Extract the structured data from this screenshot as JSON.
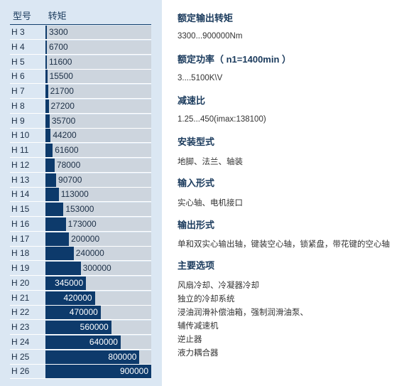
{
  "chart_data": {
    "type": "bar",
    "orientation": "horizontal",
    "header": {
      "model": "型号",
      "torque": "转矩"
    },
    "categories": [
      "H 3",
      "H 4",
      "H 5",
      "H 6",
      "H 7",
      "H 8",
      "H 9",
      "H 10",
      "H 11",
      "H 12",
      "H 13",
      "H 14",
      "H 15",
      "H 16",
      "H 17",
      "H 18",
      "H 19",
      "H 20",
      "H 21",
      "H 22",
      "H 23",
      "H 24",
      "H 25",
      "H 26"
    ],
    "values": [
      3300,
      6700,
      11600,
      15500,
      21700,
      27200,
      35700,
      44200,
      61600,
      78000,
      90700,
      113000,
      153000,
      173000,
      200000,
      240000,
      300000,
      345000,
      420000,
      470000,
      560000,
      640000,
      800000,
      900000
    ],
    "labels": [
      "3300",
      "6700",
      "11600",
      "15500",
      "21700",
      "27200",
      "35700",
      "44200",
      "61600",
      "78000",
      "90700",
      "113000",
      "153000",
      "173000",
      "200000",
      "240000",
      "300000",
      "345000",
      "420000",
      "470000",
      "560000",
      "640000",
      "800000",
      "900000"
    ],
    "xlim": [
      0,
      900000
    ],
    "bar_color": "#0d3a6b",
    "track_color": "#cdd5de",
    "panel_color": "#dbe7f3"
  },
  "specs": [
    {
      "title": "额定输出转矩",
      "lines": [
        "3300...900000Nm"
      ]
    },
    {
      "title": "额定功率（ n1=1400min ）",
      "lines": [
        "3....5100K\\V"
      ]
    },
    {
      "title": "减速比",
      "lines": [
        "1.25...450(imax:138100)"
      ]
    },
    {
      "title": "安装型式",
      "lines": [
        "地脚、法兰、轴装"
      ]
    },
    {
      "title": "输入形式",
      "lines": [
        "实心轴、电机接口"
      ]
    },
    {
      "title": "输出形式",
      "lines": [
        "单和双实心输出轴，键装空心轴，锁紧盘，带花键的空心轴"
      ]
    },
    {
      "title": "主要选项",
      "lines": [
        "风扇冷却、冷凝器冷却",
        "独立的冷却系统",
        "浸油润滑补偿油箱，强制润滑油泵、",
        "辅传减速机",
        "逆止器",
        "液力耦合器"
      ]
    }
  ]
}
